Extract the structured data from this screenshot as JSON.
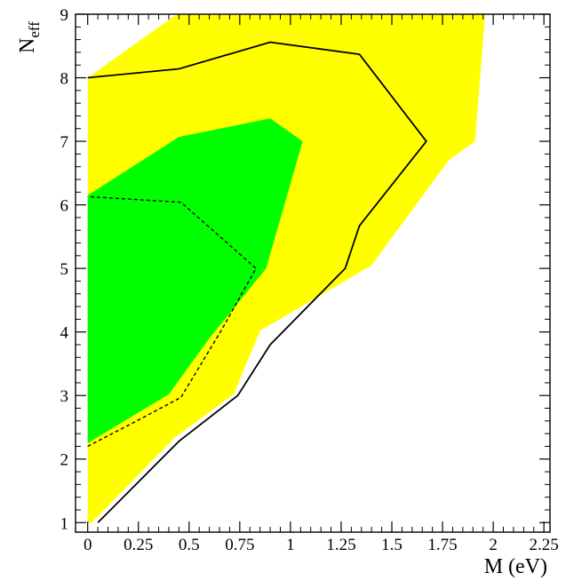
{
  "chart_data": {
    "type": "area",
    "xlabel": "M (eV)",
    "ylabel_main": "N",
    "ylabel_sub": "eff",
    "xlim": [
      -0.06,
      2.28
    ],
    "ylim": [
      0.85,
      9.0
    ],
    "xticks": [
      {
        "value": 0,
        "label": "0"
      },
      {
        "value": 0.25,
        "label": "0.25"
      },
      {
        "value": 0.5,
        "label": "0.5"
      },
      {
        "value": 0.75,
        "label": "0.75"
      },
      {
        "value": 1,
        "label": "1"
      },
      {
        "value": 1.25,
        "label": "1.25"
      },
      {
        "value": 1.5,
        "label": "1.5"
      },
      {
        "value": 1.75,
        "label": "1.75"
      },
      {
        "value": 2,
        "label": "2"
      },
      {
        "value": 2.25,
        "label": "2.25"
      }
    ],
    "yticks": [
      {
        "value": 1,
        "label": "1"
      },
      {
        "value": 2,
        "label": "2"
      },
      {
        "value": 3,
        "label": "3"
      },
      {
        "value": 4,
        "label": "4"
      },
      {
        "value": 5,
        "label": "5"
      },
      {
        "value": 6,
        "label": "6"
      },
      {
        "value": 7,
        "label": "7"
      },
      {
        "value": 8,
        "label": "8"
      },
      {
        "value": 9,
        "label": "9"
      }
    ],
    "grid": false,
    "regions": [
      {
        "id": "region-95",
        "fill": "#ffff00",
        "points": [
          [
            0,
            1.0
          ],
          [
            0,
            8.0
          ],
          [
            0.44,
            9.0
          ],
          [
            1.96,
            9.0
          ],
          [
            1.91,
            7.0
          ],
          [
            1.78,
            6.7
          ],
          [
            1.4,
            5.05
          ],
          [
            0.85,
            4.02
          ],
          [
            0.72,
            3.02
          ],
          [
            0.43,
            2.34
          ],
          [
            0.02,
            1.0
          ]
        ]
      },
      {
        "id": "region-68",
        "fill": "#00ff00",
        "points": [
          [
            0,
            2.25
          ],
          [
            0,
            6.15
          ],
          [
            0.45,
            7.07
          ],
          [
            0.9,
            7.36
          ],
          [
            1.06,
            7.0
          ],
          [
            0.88,
            5.0
          ],
          [
            0.6,
            3.9
          ],
          [
            0.4,
            3.02
          ],
          [
            0.16,
            2.56
          ],
          [
            0,
            2.25
          ]
        ]
      }
    ],
    "contours": [
      {
        "id": "contour-solid",
        "style": "solid",
        "points": [
          [
            0.05,
            1.0
          ],
          [
            0.45,
            2.28
          ],
          [
            0.74,
            3.0
          ],
          [
            0.9,
            3.8
          ],
          [
            1.27,
            5.0
          ],
          [
            1.34,
            5.67
          ],
          [
            1.67,
            7.0
          ],
          [
            1.34,
            8.37
          ],
          [
            0.9,
            8.56
          ],
          [
            0.45,
            8.14
          ],
          [
            0,
            8.0
          ]
        ]
      },
      {
        "id": "contour-dashed",
        "style": "dashed",
        "points": [
          [
            0,
            2.2
          ],
          [
            0.23,
            2.58
          ],
          [
            0.46,
            2.97
          ],
          [
            0.66,
            4.03
          ],
          [
            0.83,
            5.0
          ],
          [
            0.46,
            6.04
          ],
          [
            0,
            6.13
          ]
        ]
      }
    ]
  }
}
